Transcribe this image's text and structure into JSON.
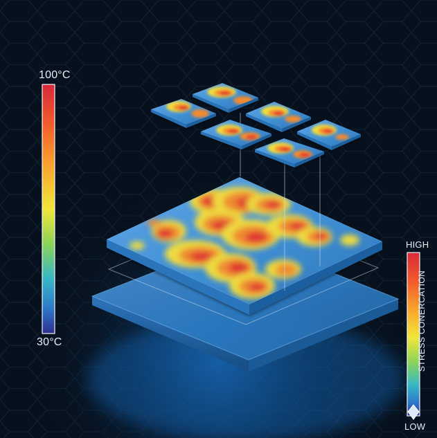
{
  "scales": {
    "temperature": {
      "max_label": "100°C",
      "min_label": "30°C",
      "colors": [
        "#d8283b",
        "#f25d2c",
        "#f9a52d",
        "#f1e63a",
        "#8bd457",
        "#37b7c6",
        "#2d78c9",
        "#2f2f91"
      ]
    },
    "stress": {
      "high_label": "HIGH",
      "low_label": "LOW",
      "title": "STRESS CONERCATION",
      "colors": [
        "#d8283b",
        "#f25d2c",
        "#f9a52d",
        "#f1e63a",
        "#8bd457",
        "#37b7c6",
        "#2d78c9",
        "#2f2f91"
      ]
    }
  },
  "palette": {
    "background": "#07111d",
    "panel_blue": "#3f8fd4",
    "panel_edge": "#1b5d98",
    "hot_red": "#e3342f",
    "warm_orange": "#f28b2f",
    "yellow": "#f2dd3c",
    "cyan": "#5cc9df"
  },
  "icons": {
    "stress_marker": "diamond-marker-icon"
  }
}
